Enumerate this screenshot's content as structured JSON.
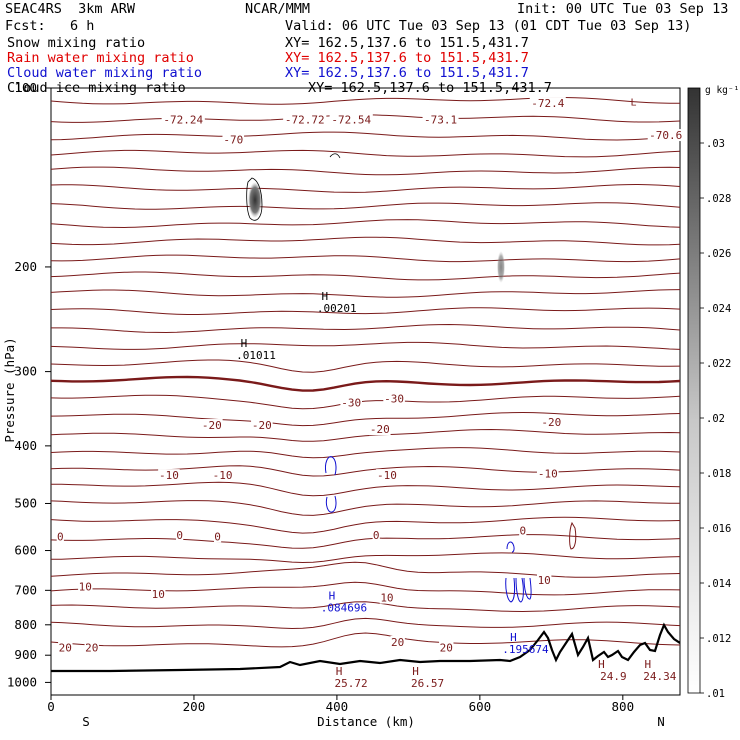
{
  "header": {
    "model": "SEAC4RS  3km ARW",
    "org": "NCAR/MMM",
    "init": "Init: 00 UTC Tue 03 Sep 13",
    "fcst": "Fcst:   6 h",
    "valid": "Valid: 06 UTC Tue 03 Sep 13 (01 CDT Tue 03 Sep 13)",
    "fields": [
      {
        "label": "Snow mixing ratio",
        "xy": "XY= 162.5,137.6 to 151.5,431.7",
        "color": "#000000"
      },
      {
        "label": "Rain water mixing ratio",
        "xy": "XY= 162.5,137.6 to 151.5,431.7",
        "color": "#e00000"
      },
      {
        "label": "Cloud water mixing ratio",
        "xy": "XY= 162.5,137.6 to 151.5,431.7",
        "color": "#1010d0"
      },
      {
        "label": "Cloud ice mixing ratio",
        "xy": "XY= 162.5,137.6 to 151.5,431.7",
        "color": "#000000"
      }
    ]
  },
  "colorbar": {
    "unit": "g kg⁻¹",
    "ticks": [
      ".01",
      ".012",
      ".014",
      ".016",
      ".018",
      ".02",
      ".022",
      ".024",
      ".026",
      ".028",
      ".03"
    ],
    "range": [
      0.01,
      0.032
    ]
  },
  "chart_data": {
    "type": "cross-section",
    "xlabel": "Distance (km)",
    "ylabel": "Pressure (hPa)",
    "xlim": [
      0,
      880
    ],
    "ylim": [
      1050,
      100
    ],
    "y_scale": "log",
    "xticks": [
      "0",
      "200",
      "400",
      "600",
      "800"
    ],
    "yticks": [
      "100",
      "200",
      "300",
      "400",
      "500",
      "600",
      "700",
      "800",
      "900",
      "1000"
    ],
    "x_end_labels": {
      "left": "S",
      "right": "N"
    },
    "isotherm_color": "#7a1a1a",
    "isotherm_labels": [
      {
        "text": "-72.24",
        "x": 185,
        "p": 113
      },
      {
        "text": "-70",
        "x": 255,
        "p": 122
      },
      {
        "text": "-72.72",
        "x": 355,
        "p": 113
      },
      {
        "text": "-72.54",
        "x": 420,
        "p": 113
      },
      {
        "text": "-73.1",
        "x": 545,
        "p": 113
      },
      {
        "text": "-72.4",
        "x": 695,
        "p": 106
      },
      {
        "text": "-70.6",
        "x": 860,
        "p": 120
      },
      {
        "text": "-30",
        "x": 420,
        "p": 338
      },
      {
        "text": "-30",
        "x": 480,
        "p": 333
      },
      {
        "text": "-20",
        "x": 225,
        "p": 369
      },
      {
        "text": "-20",
        "x": 295,
        "p": 369
      },
      {
        "text": "-20",
        "x": 460,
        "p": 375
      },
      {
        "text": "-20",
        "x": 700,
        "p": 365
      },
      {
        "text": "-10",
        "x": 165,
        "p": 448
      },
      {
        "text": "-10",
        "x": 240,
        "p": 448
      },
      {
        "text": "-10",
        "x": 470,
        "p": 448
      },
      {
        "text": "-10",
        "x": 695,
        "p": 445
      },
      {
        "text": "0",
        "x": 13,
        "p": 568
      },
      {
        "text": "0",
        "x": 180,
        "p": 565
      },
      {
        "text": "0",
        "x": 233,
        "p": 568
      },
      {
        "text": "0",
        "x": 455,
        "p": 565
      },
      {
        "text": "0",
        "x": 660,
        "p": 555
      },
      {
        "text": "10",
        "x": 48,
        "p": 690
      },
      {
        "text": "10",
        "x": 150,
        "p": 710
      },
      {
        "text": "10",
        "x": 470,
        "p": 720
      },
      {
        "text": "10",
        "x": 690,
        "p": 672
      },
      {
        "text": "20",
        "x": 20,
        "p": 873
      },
      {
        "text": "20",
        "x": 57,
        "p": 873
      },
      {
        "text": "20",
        "x": 485,
        "p": 855
      },
      {
        "text": "20",
        "x": 553,
        "p": 873
      }
    ],
    "maxima_labels": [
      {
        "text": "H",
        "value": ".01011",
        "x": 270,
        "p": 278,
        "color": "#000000"
      },
      {
        "text": "H",
        "value": ".00201",
        "x": 383,
        "p": 232,
        "color": "#000000"
      },
      {
        "text": "H",
        "value": ".084696",
        "x": 393,
        "p": 740,
        "color": "#1010d0"
      },
      {
        "text": "H",
        "value": ".195674",
        "x": 647,
        "p": 868,
        "color": "#1010d0"
      },
      {
        "text": "H",
        "value": "25.72",
        "x": 403,
        "p": 990,
        "color": "#7a1a1a"
      },
      {
        "text": "H",
        "value": "26.57",
        "x": 510,
        "p": 990,
        "color": "#7a1a1a"
      },
      {
        "text": "H",
        "value": "24.9",
        "x": 770,
        "p": 965,
        "color": "#7a1a1a"
      },
      {
        "text": "H",
        "value": "24.34",
        "x": 835,
        "p": 965,
        "color": "#7a1a1a"
      }
    ],
    "top_marker": {
      "text": "L",
      "x": 815,
      "p": 107
    }
  }
}
